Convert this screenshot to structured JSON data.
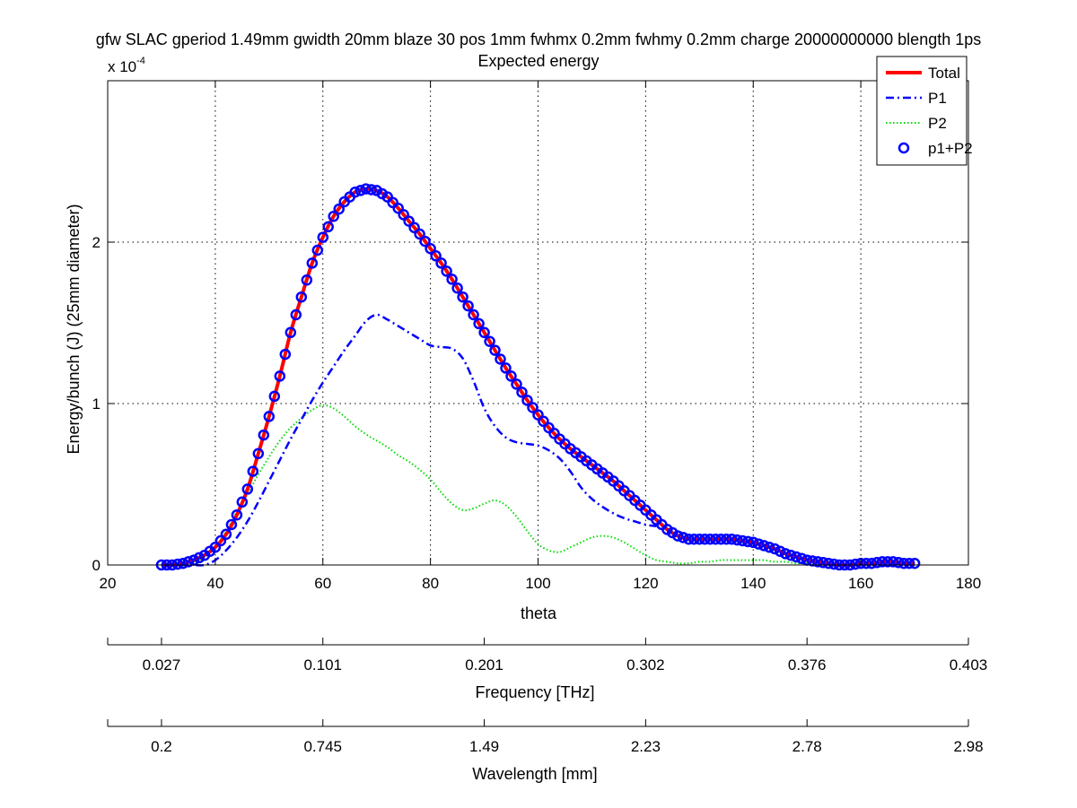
{
  "chart_data": {
    "type": "line",
    "title": "gfw SLAC gperiod 1.49mm gwidth 20mm blaze 30 pos 1mm fwhmx 0.2mm fwhmy 0.2mm charge 20000000000 blength 1ps",
    "subtitle": "Expected energy",
    "xlabel": "theta",
    "ylabel": "Energy/bunch (J) (25mm diameter)",
    "y_multiplier_label": "x 10",
    "y_multiplier_exponent": "-4",
    "xlim": [
      20,
      180
    ],
    "ylim": [
      0,
      3
    ],
    "x_ticks": [
      "20",
      "40",
      "60",
      "80",
      "100",
      "120",
      "140",
      "160",
      "180"
    ],
    "y_ticks": [
      "0",
      "1",
      "2"
    ],
    "grid": true,
    "legend_position": "top-right",
    "secondary_axes": [
      {
        "label": "Frequency [THz]",
        "ticks": [
          {
            "x": 20,
            "label": ""
          },
          {
            "x": 30,
            "label": "0.027"
          },
          {
            "x": 60,
            "label": "0.101"
          },
          {
            "x": 90,
            "label": "0.201"
          },
          {
            "x": 120,
            "label": "0.302"
          },
          {
            "x": 150,
            "label": "0.376"
          },
          {
            "x": 180,
            "label": "0.403"
          }
        ]
      },
      {
        "label": "Wavelength [mm]",
        "ticks": [
          {
            "x": 20,
            "label": ""
          },
          {
            "x": 30,
            "label": "0.2"
          },
          {
            "x": 60,
            "label": "0.745"
          },
          {
            "x": 90,
            "label": "1.49"
          },
          {
            "x": 120,
            "label": "2.23"
          },
          {
            "x": 150,
            "label": "2.78"
          },
          {
            "x": 180,
            "label": "2.98"
          }
        ]
      }
    ],
    "series": [
      {
        "name": "Total",
        "color": "#ff0000",
        "style": "solid",
        "x": [
          30,
          32,
          34,
          36,
          38,
          40,
          42,
          44,
          46,
          48,
          50,
          52,
          54,
          56,
          58,
          60,
          62,
          64,
          66,
          68,
          70,
          72,
          74,
          76,
          78,
          80,
          82,
          84,
          86,
          88,
          90,
          92,
          94,
          96,
          98,
          100,
          102,
          104,
          106,
          108,
          110,
          112,
          114,
          116,
          118,
          120,
          122,
          124,
          126,
          128,
          130,
          132,
          134,
          136,
          138,
          140,
          142,
          144,
          146,
          148,
          150,
          152,
          154,
          156,
          158,
          160,
          162,
          164,
          166,
          168,
          170
        ],
        "y": [
          0.0,
          0.0,
          0.01,
          0.03,
          0.06,
          0.11,
          0.19,
          0.31,
          0.47,
          0.69,
          0.92,
          1.17,
          1.44,
          1.66,
          1.87,
          2.03,
          2.16,
          2.25,
          2.31,
          2.33,
          2.32,
          2.28,
          2.21,
          2.13,
          2.05,
          1.96,
          1.87,
          1.77,
          1.66,
          1.55,
          1.44,
          1.33,
          1.22,
          1.12,
          1.02,
          0.93,
          0.85,
          0.78,
          0.72,
          0.67,
          0.62,
          0.57,
          0.52,
          0.46,
          0.4,
          0.34,
          0.28,
          0.22,
          0.18,
          0.16,
          0.16,
          0.16,
          0.16,
          0.16,
          0.15,
          0.14,
          0.12,
          0.1,
          0.07,
          0.05,
          0.03,
          0.02,
          0.01,
          0.0,
          0.0,
          0.01,
          0.01,
          0.02,
          0.02,
          0.01,
          0.01
        ]
      },
      {
        "name": "P1",
        "color": "#0000ff",
        "style": "dashdot",
        "x": [
          30,
          32,
          34,
          36,
          38,
          40,
          42,
          44,
          46,
          48,
          50,
          52,
          54,
          56,
          58,
          60,
          62,
          64,
          66,
          68,
          70,
          72,
          74,
          76,
          78,
          80,
          82,
          84,
          86,
          88,
          90,
          92,
          94,
          96,
          98,
          100,
          102,
          104,
          106,
          108,
          110,
          112,
          114,
          116,
          118,
          120,
          122
        ],
        "y": [
          0.0,
          0.0,
          0.0,
          0.0,
          0.0,
          0.03,
          0.09,
          0.17,
          0.27,
          0.39,
          0.52,
          0.65,
          0.78,
          0.9,
          1.02,
          1.13,
          1.23,
          1.33,
          1.42,
          1.51,
          1.55,
          1.52,
          1.48,
          1.44,
          1.4,
          1.36,
          1.35,
          1.34,
          1.28,
          1.14,
          0.97,
          0.86,
          0.79,
          0.76,
          0.75,
          0.74,
          0.71,
          0.66,
          0.58,
          0.48,
          0.41,
          0.36,
          0.32,
          0.29,
          0.27,
          0.25,
          0.24
        ]
      },
      {
        "name": "P2",
        "color": "#00dd00",
        "style": "dotted",
        "x": [
          30,
          32,
          34,
          36,
          38,
          40,
          42,
          44,
          46,
          48,
          50,
          52,
          54,
          56,
          58,
          60,
          62,
          64,
          66,
          68,
          70,
          72,
          74,
          76,
          78,
          80,
          82,
          84,
          86,
          88,
          90,
          92,
          94,
          96,
          98,
          100,
          102,
          104,
          106,
          108,
          110,
          112,
          114,
          116,
          118,
          120,
          122,
          124,
          126,
          128,
          130,
          132,
          134,
          136,
          138,
          140,
          142,
          144,
          146,
          148,
          150,
          152
        ],
        "y": [
          0.0,
          0.0,
          0.0,
          0.02,
          0.05,
          0.11,
          0.21,
          0.33,
          0.44,
          0.56,
          0.67,
          0.77,
          0.85,
          0.91,
          0.96,
          0.99,
          0.97,
          0.92,
          0.86,
          0.81,
          0.77,
          0.73,
          0.68,
          0.64,
          0.59,
          0.53,
          0.45,
          0.38,
          0.34,
          0.35,
          0.38,
          0.4,
          0.37,
          0.3,
          0.21,
          0.13,
          0.09,
          0.08,
          0.11,
          0.14,
          0.17,
          0.18,
          0.17,
          0.14,
          0.1,
          0.06,
          0.03,
          0.02,
          0.01,
          0.01,
          0.02,
          0.02,
          0.03,
          0.03,
          0.03,
          0.03,
          0.03,
          0.02,
          0.02,
          0.01,
          0.01,
          0.0
        ]
      },
      {
        "name": "p1+P2",
        "color": "#0000ff",
        "style": "circles",
        "x_start": 30,
        "x_end": 170,
        "x_step": 1,
        "same_as": "Total"
      }
    ]
  }
}
